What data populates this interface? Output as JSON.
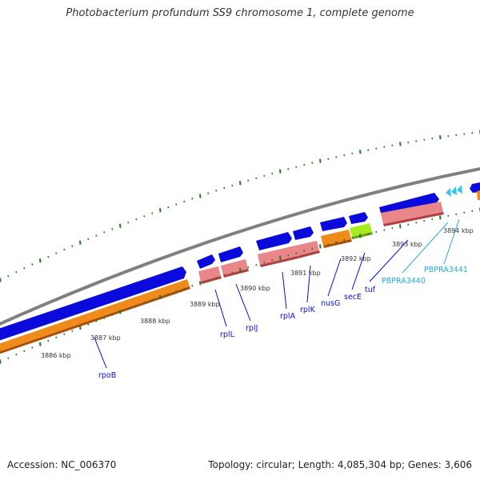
{
  "title": "Photobacterium profundum SS9 chromosome 1, complete genome",
  "footer": {
    "accession": "Accession: NC_006370",
    "summary": "Topology: circular; Length: 4,085,304 bp; Genes: 3,606"
  },
  "colors": {
    "cds_blue": "#0a0adc",
    "rna_salmon": "#e8868a",
    "orange": "#f08a1a",
    "lime": "#a8ec20",
    "cyan_label": "#22aadd",
    "tick_green": "#1f7a1f",
    "backbone_gray": "#808080"
  },
  "ticks": [
    {
      "label": "3886 kbp"
    },
    {
      "label": "3887 kbp"
    },
    {
      "label": "3888 kbp"
    },
    {
      "label": "3889 kbp"
    },
    {
      "label": "3890 kbp"
    },
    {
      "label": "3891 kbp"
    },
    {
      "label": "3892 kbp"
    },
    {
      "label": "3893 kbp"
    },
    {
      "label": "3894 kbp"
    }
  ],
  "genes": [
    {
      "name": "rpoB"
    },
    {
      "name": "rplL"
    },
    {
      "name": "rplJ"
    },
    {
      "name": "rplA"
    },
    {
      "name": "rplK"
    },
    {
      "name": "nusG"
    },
    {
      "name": "secE"
    },
    {
      "name": "tuf"
    },
    {
      "name": "PBPRA3440"
    },
    {
      "name": "PBPRA3441"
    }
  ]
}
